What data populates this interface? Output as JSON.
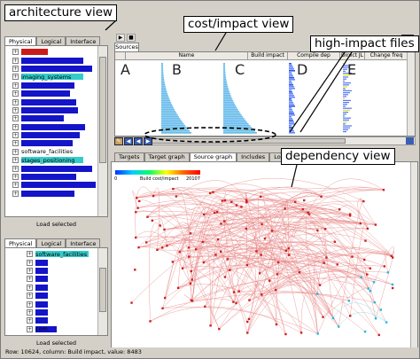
{
  "annotations": {
    "architecture_view": "architecture view",
    "cost_impact_view": "cost/impact view",
    "high_impact_files": "high-impact files",
    "dependency_view": "dependency view",
    "col_a": "A",
    "col_b": "B",
    "col_c": "C",
    "col_d": "D",
    "col_e": "E"
  },
  "top_left_panel": {
    "tabs": [
      "Physical",
      "Logical",
      "Interface"
    ],
    "active_tab": "Physical",
    "rows": [
      {
        "label": "",
        "color": "#cc1a1a"
      },
      {
        "label": "",
        "color": "#1414c8"
      },
      {
        "label": "",
        "color": "#1414c8"
      },
      {
        "label": "imaging_systems",
        "color": "#33cccc"
      },
      {
        "label": "",
        "color": "#1414c8"
      },
      {
        "label": "",
        "color": "#1414c8"
      },
      {
        "label": "",
        "color": "#1414c8"
      },
      {
        "label": "",
        "color": "#1414c8"
      },
      {
        "label": "",
        "color": "#1414c8"
      },
      {
        "label": "",
        "color": "#1414c8"
      },
      {
        "label": "",
        "color": "#1414c8"
      },
      {
        "label": "",
        "color": "#1414c8"
      },
      {
        "label": "software_facilities",
        "color": ""
      },
      {
        "label": "stages_positioning",
        "color": "#33cccc"
      },
      {
        "label": "",
        "color": "#1414c8"
      },
      {
        "label": "",
        "color": "#1414c8"
      },
      {
        "label": "",
        "color": "#1414c8"
      },
      {
        "label": "",
        "color": "#1414c8"
      }
    ],
    "load_button": "Load selected"
  },
  "bottom_left_panel": {
    "tabs": [
      "Physical",
      "Logical",
      "Interface"
    ],
    "active_tab": "Physical",
    "rows": [
      {
        "label": "software_facilities",
        "color": "#33cccc"
      },
      {
        "label": "",
        "color": "#1414c8"
      },
      {
        "label": "",
        "color": "#1414c8"
      },
      {
        "label": "",
        "color": "#1414c8"
      },
      {
        "label": "",
        "color": "#1414c8"
      },
      {
        "label": "",
        "color": "#1414c8"
      },
      {
        "label": "",
        "color": "#1414c8"
      },
      {
        "label": "",
        "color": "#1414c8"
      },
      {
        "label": "",
        "color": "#1414c8"
      },
      {
        "label": "com",
        "color": "#1414c8"
      }
    ],
    "load_button": "Load selected"
  },
  "sources_panel": {
    "tab": "Sources",
    "columns": [
      "Name",
      "Build impact",
      "Compile dep",
      "Direct JL",
      "Change freq"
    ]
  },
  "bottom_tabs": [
    "Targets",
    "Target graph",
    "Source graph",
    "Includes",
    "Log"
  ],
  "active_bottom_tab": "Source graph",
  "legend": {
    "min_label": "0",
    "title": "Build cost/impact",
    "max_label": "20107"
  },
  "status_text": "Row: 10624, column: Build impact, value: 8483"
}
